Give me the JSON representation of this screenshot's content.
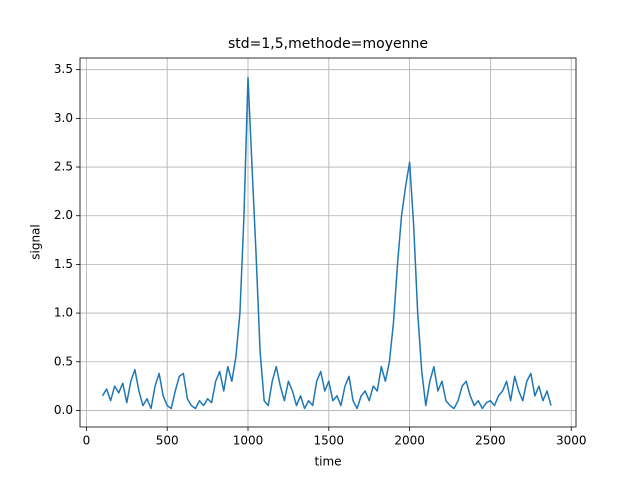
{
  "chart_data": {
    "type": "line",
    "title": "std=1,5,methode=moyenne",
    "x_label": "time",
    "y_label": "signal",
    "x": [
      100,
      125,
      150,
      175,
      200,
      225,
      250,
      275,
      300,
      325,
      350,
      375,
      400,
      425,
      450,
      475,
      500,
      525,
      550,
      575,
      600,
      625,
      650,
      675,
      700,
      725,
      750,
      775,
      800,
      825,
      850,
      875,
      900,
      925,
      950,
      975,
      1000,
      1025,
      1050,
      1075,
      1100,
      1125,
      1150,
      1175,
      1200,
      1225,
      1250,
      1275,
      1300,
      1325,
      1350,
      1375,
      1400,
      1425,
      1450,
      1475,
      1500,
      1525,
      1550,
      1575,
      1600,
      1625,
      1650,
      1675,
      1700,
      1725,
      1750,
      1775,
      1800,
      1825,
      1850,
      1875,
      1900,
      1925,
      1950,
      1975,
      2000,
      2025,
      2050,
      2075,
      2100,
      2125,
      2150,
      2175,
      2200,
      2225,
      2250,
      2275,
      2300,
      2325,
      2350,
      2375,
      2400,
      2425,
      2450,
      2475,
      2500,
      2525,
      2550,
      2575,
      2600,
      2625,
      2650,
      2675,
      2700,
      2725,
      2750,
      2775,
      2800,
      2825,
      2850,
      2875
    ],
    "values": [
      0.15,
      0.22,
      0.1,
      0.25,
      0.18,
      0.28,
      0.08,
      0.3,
      0.42,
      0.2,
      0.05,
      0.12,
      0.02,
      0.25,
      0.38,
      0.15,
      0.05,
      0.02,
      0.2,
      0.35,
      0.38,
      0.12,
      0.05,
      0.02,
      0.1,
      0.05,
      0.12,
      0.08,
      0.3,
      0.4,
      0.2,
      0.45,
      0.3,
      0.55,
      1.0,
      2.0,
      3.42,
      2.5,
      1.6,
      0.6,
      0.1,
      0.05,
      0.3,
      0.45,
      0.25,
      0.1,
      0.3,
      0.2,
      0.05,
      0.15,
      0.02,
      0.1,
      0.05,
      0.3,
      0.4,
      0.2,
      0.3,
      0.1,
      0.15,
      0.05,
      0.25,
      0.35,
      0.1,
      0.02,
      0.15,
      0.2,
      0.1,
      0.25,
      0.2,
      0.45,
      0.3,
      0.5,
      0.9,
      1.5,
      2.0,
      2.3,
      2.55,
      1.9,
      1.0,
      0.4,
      0.05,
      0.3,
      0.45,
      0.2,
      0.3,
      0.1,
      0.05,
      0.02,
      0.1,
      0.25,
      0.3,
      0.15,
      0.05,
      0.1,
      0.02,
      0.08,
      0.1,
      0.05,
      0.15,
      0.2,
      0.3,
      0.1,
      0.35,
      0.2,
      0.1,
      0.3,
      0.38,
      0.15,
      0.25,
      0.1,
      0.2,
      0.05
    ],
    "color": "#1f77b4",
    "xlim": [
      -39.5,
      3029.5
    ],
    "xticks": [
      0,
      500,
      1000,
      1500,
      2000,
      2500,
      3000
    ],
    "ylim": [
      -0.17,
      3.62
    ],
    "yticks": [
      {
        "value": 0,
        "label": "0.0"
      },
      0.5,
      {
        "value": 1,
        "label": "1.0"
      },
      1.5,
      {
        "value": 2,
        "label": "2.0"
      },
      2.5,
      {
        "value": 3,
        "label": "3.0"
      },
      3.5
    ],
    "grid": true
  }
}
